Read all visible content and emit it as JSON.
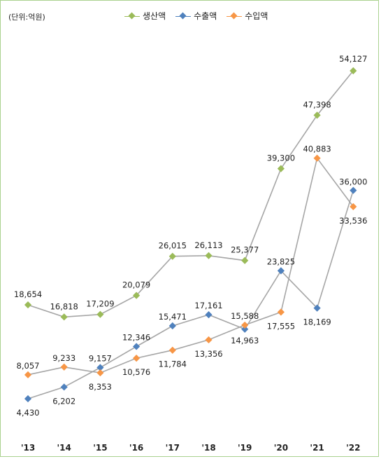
{
  "chart_data": {
    "type": "line",
    "unit_label": "(단위:억원)",
    "categories": [
      "'13",
      "'14",
      "'15",
      "'16",
      "'17",
      "'18",
      "'19",
      "'20",
      "'21",
      "'22"
    ],
    "series": [
      {
        "name": "생산액",
        "color": "#9bbb59",
        "values": [
          18654,
          16818,
          17209,
          20079,
          26015,
          26113,
          25377,
          39300,
          47398,
          54127
        ],
        "labels": [
          "18,654",
          "16,818",
          "17,209",
          "20,079",
          "26,015",
          "26,113",
          "25,377",
          "39,300",
          "47,398",
          "54,127"
        ]
      },
      {
        "name": "수출액",
        "color": "#4f81bd",
        "values": [
          4430,
          6202,
          9157,
          12346,
          15471,
          17161,
          14963,
          23825,
          18169,
          36000
        ],
        "labels": [
          "4,430",
          "6,202",
          "9,157",
          "12,346",
          "15,471",
          "17,161",
          "14,963",
          "23,825",
          "18,169",
          "36,000"
        ]
      },
      {
        "name": "수입액",
        "color": "#f79646",
        "values": [
          8057,
          9233,
          8353,
          10576,
          11784,
          13356,
          15588,
          17555,
          40883,
          33536
        ],
        "labels": [
          "8,057",
          "9,233",
          "8,353",
          "10,576",
          "11,784",
          "13,356",
          "15,588",
          "17,555",
          "40,883",
          "33,536"
        ]
      }
    ],
    "line_color": "#a6a6a6",
    "legend_position": "top",
    "grid": false
  }
}
